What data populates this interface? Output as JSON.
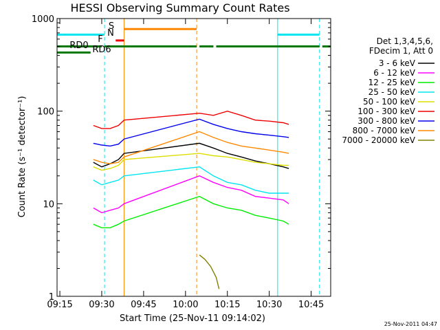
{
  "chart_data": {
    "type": "line",
    "title": "HESSI Observing Summary Count Rates",
    "xlabel": "Start Time (25-Nov-11 09:14:02)",
    "ylabel": "Count Rate (s⁻¹ detector⁻¹)",
    "y_scale": "log",
    "ylim": [
      1,
      1000
    ],
    "xlim": [
      "09:14",
      "10:52"
    ],
    "x_ticks": [
      "09:15",
      "09:30",
      "09:45",
      "10:00",
      "10:15",
      "10:30",
      "10:45"
    ],
    "y_ticks": [
      "1",
      "10",
      "100",
      "1000"
    ],
    "legend_header": [
      "Det 1,3,4,5,6,",
      "FDecim 1, Att 0"
    ],
    "legend_position": "right",
    "timestamp": "25-Nov-2011 04:47",
    "flags": [
      {
        "label": "RD0",
        "color": "#007700",
        "segments": [
          [
            "09:14",
            "09:30"
          ],
          [
            "09:31",
            "10:04"
          ],
          [
            "10:05",
            "10:10"
          ],
          [
            "10:11",
            "10:48"
          ],
          [
            "10:49",
            "10:52"
          ]
        ],
        "level": 500
      },
      {
        "label": "RD6",
        "color": "#007700",
        "segments": [
          [
            "09:14",
            "09:26"
          ]
        ],
        "level": 430
      },
      {
        "label": "",
        "color": "#00e5ee",
        "segments": [
          [
            "09:14",
            "09:31"
          ],
          [
            "10:33",
            "10:48"
          ]
        ],
        "level": 670
      },
      {
        "label": "F",
        "color": "#ee0000",
        "segments": [
          [
            "09:35",
            "09:38"
          ]
        ],
        "level": 580
      },
      {
        "label": "S",
        "color": "#ff8800",
        "segments": [
          [
            "09:38",
            "10:04"
          ]
        ],
        "level": 770
      },
      {
        "label": "N",
        "color": "#00e5ee",
        "segments": [],
        "level": 660
      }
    ],
    "vlines": [
      {
        "x": "09:31",
        "color": "#00e5ee",
        "style": "dashed"
      },
      {
        "x": "09:38",
        "color": "#ff8800",
        "style": "solid"
      },
      {
        "x": "10:04",
        "color": "#ff8800",
        "style": "dashed"
      },
      {
        "x": "10:33",
        "color": "#00e5ee",
        "style": "solid"
      },
      {
        "x": "10:48",
        "color": "#00e5ee",
        "style": "dashed"
      }
    ],
    "series": [
      {
        "name": "3 - 6 keV",
        "color": "#000000",
        "points": [
          [
            "09:27",
            28
          ],
          [
            "09:30",
            25
          ],
          [
            "09:33",
            27
          ],
          [
            "09:36",
            30
          ],
          [
            "09:38",
            35
          ],
          [
            "10:05",
            45
          ],
          [
            "10:10",
            40
          ],
          [
            "10:15",
            35
          ],
          [
            "10:20",
            32
          ],
          [
            "10:25",
            29
          ],
          [
            "10:30",
            27
          ],
          [
            "10:35",
            25
          ],
          [
            "10:37",
            24
          ]
        ]
      },
      {
        "name": "6 - 12 keV",
        "color": "#ff00ff",
        "points": [
          [
            "09:27",
            9
          ],
          [
            "09:30",
            8
          ],
          [
            "09:33",
            8.5
          ],
          [
            "09:36",
            9
          ],
          [
            "09:38",
            10
          ],
          [
            "10:05",
            20
          ],
          [
            "10:10",
            17
          ],
          [
            "10:15",
            15
          ],
          [
            "10:20",
            14
          ],
          [
            "10:25",
            12
          ],
          [
            "10:30",
            11.5
          ],
          [
            "10:35",
            11
          ],
          [
            "10:37",
            10
          ]
        ]
      },
      {
        "name": "12 - 25 keV",
        "color": "#00ee00",
        "points": [
          [
            "09:27",
            6
          ],
          [
            "09:30",
            5.5
          ],
          [
            "09:33",
            5.5
          ],
          [
            "09:36",
            6
          ],
          [
            "09:38",
            6.5
          ],
          [
            "10:05",
            12
          ],
          [
            "10:10",
            10
          ],
          [
            "10:15",
            9
          ],
          [
            "10:20",
            8.5
          ],
          [
            "10:25",
            7.5
          ],
          [
            "10:30",
            7
          ],
          [
            "10:35",
            6.5
          ],
          [
            "10:37",
            6
          ]
        ]
      },
      {
        "name": "25 - 50 keV",
        "color": "#00e5ee",
        "points": [
          [
            "09:27",
            18
          ],
          [
            "09:30",
            16
          ],
          [
            "09:33",
            17
          ],
          [
            "09:36",
            18
          ],
          [
            "09:38",
            20
          ],
          [
            "10:05",
            25
          ],
          [
            "10:10",
            20
          ],
          [
            "10:15",
            17
          ],
          [
            "10:20",
            16
          ],
          [
            "10:25",
            14
          ],
          [
            "10:30",
            13
          ],
          [
            "10:35",
            13
          ],
          [
            "10:37",
            13
          ]
        ]
      },
      {
        "name": "50 - 100 keV",
        "color": "#dddd00",
        "points": [
          [
            "09:27",
            25
          ],
          [
            "09:30",
            23
          ],
          [
            "09:33",
            24
          ],
          [
            "09:36",
            26
          ],
          [
            "09:38",
            30
          ],
          [
            "10:05",
            35
          ],
          [
            "10:10",
            33
          ],
          [
            "10:15",
            32
          ],
          [
            "10:20",
            30
          ],
          [
            "10:25",
            28
          ],
          [
            "10:30",
            27
          ],
          [
            "10:35",
            26
          ],
          [
            "10:37",
            26
          ]
        ]
      },
      {
        "name": "100 - 300 keV",
        "color": "#ee0000",
        "points": [
          [
            "09:27",
            70
          ],
          [
            "09:30",
            65
          ],
          [
            "09:33",
            65
          ],
          [
            "09:36",
            70
          ],
          [
            "09:38",
            80
          ],
          [
            "10:05",
            95
          ],
          [
            "10:10",
            90
          ],
          [
            "10:15",
            100
          ],
          [
            "10:20",
            90
          ],
          [
            "10:25",
            80
          ],
          [
            "10:30",
            78
          ],
          [
            "10:35",
            75
          ],
          [
            "10:37",
            72
          ]
        ]
      },
      {
        "name": "300 - 800 keV",
        "color": "#0000ee",
        "points": [
          [
            "09:27",
            45
          ],
          [
            "09:30",
            43
          ],
          [
            "09:33",
            42
          ],
          [
            "09:36",
            44
          ],
          [
            "09:38",
            50
          ],
          [
            "10:05",
            82
          ],
          [
            "10:10",
            72
          ],
          [
            "10:15",
            65
          ],
          [
            "10:20",
            60
          ],
          [
            "10:25",
            57
          ],
          [
            "10:30",
            55
          ],
          [
            "10:35",
            53
          ],
          [
            "10:37",
            52
          ]
        ]
      },
      {
        "name": "800 - 7000 keV",
        "color": "#ff8800",
        "points": [
          [
            "09:27",
            30
          ],
          [
            "09:30",
            28
          ],
          [
            "09:33",
            27
          ],
          [
            "09:36",
            28
          ],
          [
            "09:38",
            32
          ],
          [
            "10:05",
            60
          ],
          [
            "10:10",
            52
          ],
          [
            "10:15",
            46
          ],
          [
            "10:20",
            42
          ],
          [
            "10:25",
            40
          ],
          [
            "10:30",
            38
          ],
          [
            "10:35",
            36
          ],
          [
            "10:37",
            35
          ]
        ]
      },
      {
        "name": "7000 - 20000 keV",
        "color": "#808000",
        "points": [
          [
            "10:05",
            2.8
          ],
          [
            "10:07",
            2.5
          ],
          [
            "10:09",
            2.1
          ],
          [
            "10:11",
            1.6
          ],
          [
            "10:12",
            1.2
          ]
        ]
      }
    ]
  }
}
